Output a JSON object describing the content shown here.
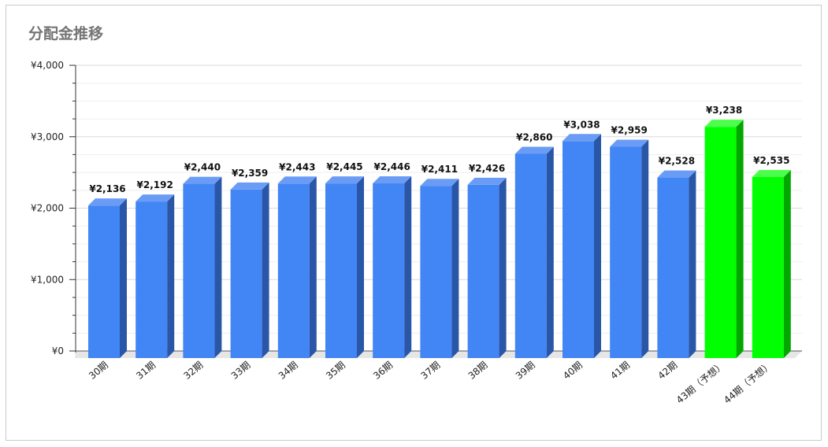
{
  "chart_data": {
    "type": "bar",
    "title": "分配金推移",
    "xlabel": "",
    "ylabel": "",
    "ylim": [
      0,
      4000
    ],
    "yticks": [
      "¥0",
      "¥1,000",
      "¥2,000",
      "¥3,000",
      "¥4,000"
    ],
    "ytick_values": [
      0,
      1000,
      2000,
      3000,
      4000
    ],
    "grid": true,
    "style": "3d-column",
    "categories": [
      "30期",
      "31期",
      "32期",
      "33期",
      "34期",
      "35期",
      "36期",
      "37期",
      "38期",
      "39期",
      "40期",
      "41期",
      "42期",
      "43期（予想）",
      "44期（予想）"
    ],
    "values": [
      2136,
      2192,
      2440,
      2359,
      2443,
      2445,
      2446,
      2411,
      2426,
      2860,
      3038,
      2959,
      2528,
      3238,
      2535
    ],
    "value_labels": [
      "¥2,136",
      "¥2,192",
      "¥2,440",
      "¥2,359",
      "¥2,443",
      "¥2,445",
      "¥2,446",
      "¥2,411",
      "¥2,426",
      "¥2,860",
      "¥3,038",
      "¥2,959",
      "¥2,528",
      "¥3,238",
      "¥2,535"
    ],
    "forecast": [
      false,
      false,
      false,
      false,
      false,
      false,
      false,
      false,
      false,
      false,
      false,
      false,
      false,
      true,
      true
    ],
    "colors": {
      "actual_front": "#4285f4",
      "actual_side": "#2a56a8",
      "actual_top": "#6a9cf6",
      "forecast_front": "#00ff00",
      "forecast_side": "#00a800",
      "forecast_top": "#4dff4d",
      "grid": "#e3e3e3",
      "axis": "#333333",
      "floor": "#e6e6e6"
    }
  }
}
